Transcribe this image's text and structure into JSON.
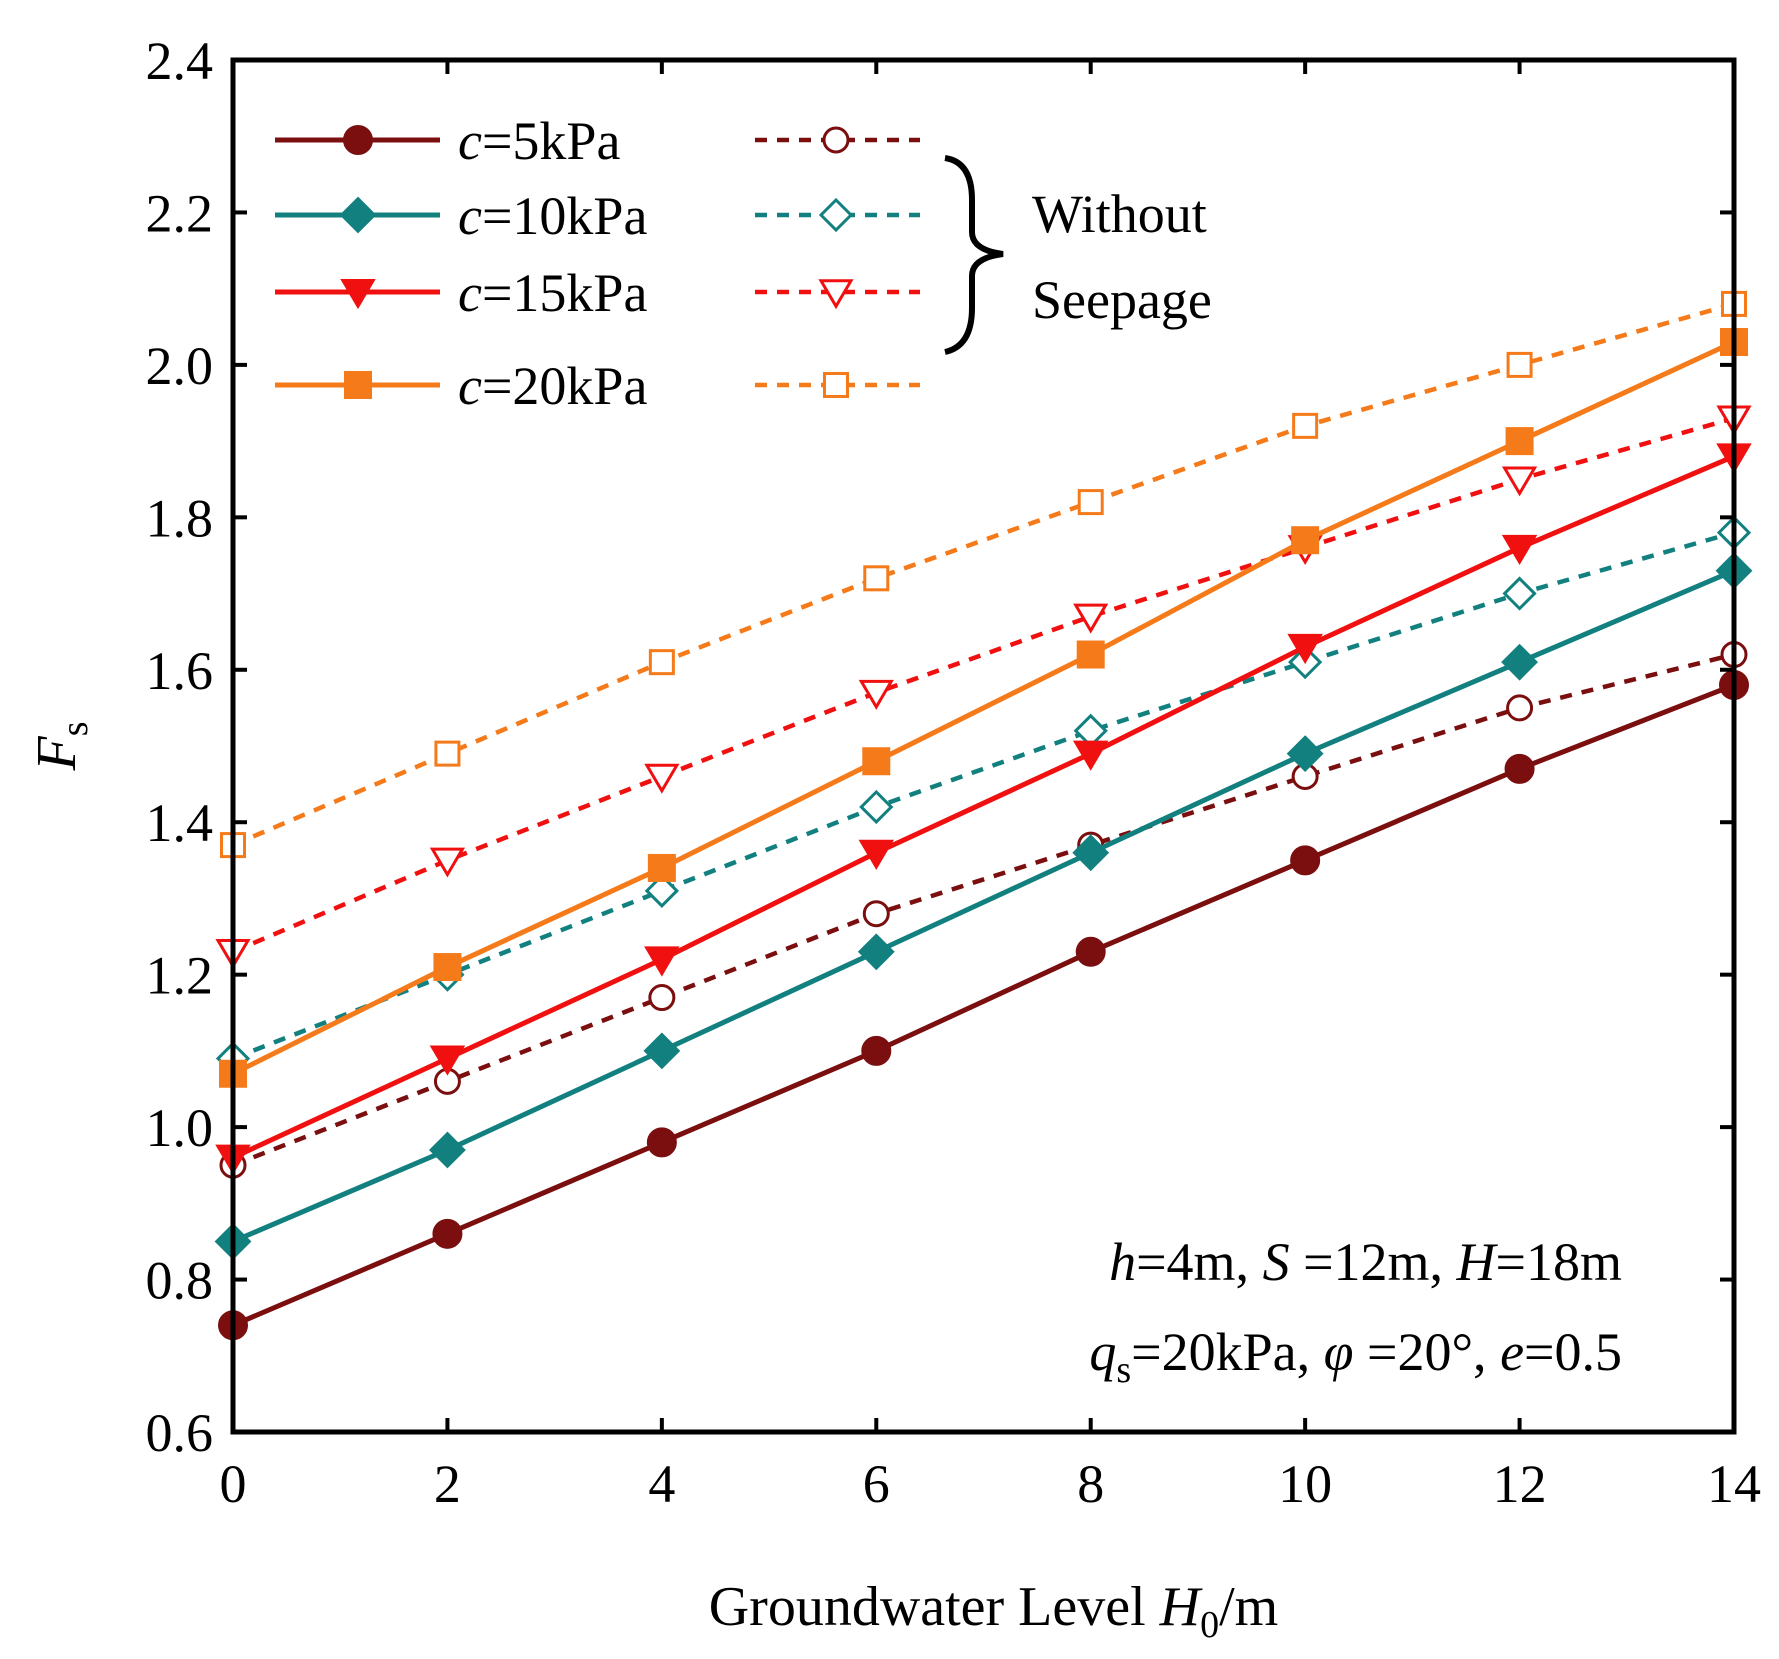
{
  "chart_data": {
    "type": "line",
    "title": "",
    "xlabel": {
      "prefix": "Groundwater Level ",
      "var": "H",
      "sub": "0",
      "suffix": "/m"
    },
    "ylabel": {
      "var": "F",
      "sub": "s"
    },
    "xlim": [
      0,
      14
    ],
    "ylim": [
      0.6,
      2.4
    ],
    "xticks": [
      "0",
      "2",
      "4",
      "6",
      "8",
      "10",
      "12",
      "14"
    ],
    "yticks": [
      "0.6",
      "0.8",
      "1.0",
      "1.2",
      "1.4",
      "1.6",
      "1.8",
      "2.0",
      "2.2",
      "2.4"
    ],
    "grid": false,
    "legend_position": "top-left",
    "x": [
      0,
      2,
      4,
      6,
      8,
      10,
      12,
      14
    ],
    "series": [
      {
        "name": "c=5kPa",
        "var": "c",
        "value": "=5kPa",
        "color": "#7b0e0e",
        "marker": "circle",
        "seepage": true,
        "values": [
          0.74,
          0.86,
          0.98,
          1.1,
          1.23,
          1.35,
          1.47,
          1.58
        ]
      },
      {
        "name": "c=10kPa",
        "var": "c",
        "value": "=10kPa",
        "color": "#138080",
        "marker": "diamond",
        "seepage": true,
        "values": [
          0.85,
          0.97,
          1.1,
          1.23,
          1.36,
          1.49,
          1.61,
          1.73
        ]
      },
      {
        "name": "c=15kPa",
        "var": "c",
        "value": "=15kPa",
        "color": "#f01010",
        "marker": "triangle-down",
        "seepage": true,
        "values": [
          0.96,
          1.09,
          1.22,
          1.36,
          1.49,
          1.63,
          1.76,
          1.88
        ]
      },
      {
        "name": "c=20kPa",
        "var": "c",
        "value": "=20kPa",
        "color": "#f57a1a",
        "marker": "square",
        "seepage": true,
        "values": [
          1.07,
          1.21,
          1.34,
          1.48,
          1.62,
          1.77,
          1.9,
          2.03
        ]
      },
      {
        "name": "c=5kPa (Without Seepage)",
        "color": "#7b0e0e",
        "marker": "circle-open",
        "seepage": false,
        "values": [
          0.95,
          1.06,
          1.17,
          1.28,
          1.37,
          1.46,
          1.55,
          1.62
        ]
      },
      {
        "name": "c=10kPa (Without Seepage)",
        "color": "#138080",
        "marker": "diamond-open",
        "seepage": false,
        "values": [
          1.09,
          1.2,
          1.31,
          1.42,
          1.52,
          1.61,
          1.7,
          1.78
        ]
      },
      {
        "name": "c=15kPa (Without Seepage)",
        "color": "#f01010",
        "marker": "triangle-down-open",
        "seepage": false,
        "values": [
          1.23,
          1.35,
          1.46,
          1.57,
          1.67,
          1.76,
          1.85,
          1.93
        ]
      },
      {
        "name": "c=20kPa (Without Seepage)",
        "color": "#f57a1a",
        "marker": "square-open",
        "seepage": false,
        "values": [
          1.37,
          1.49,
          1.61,
          1.72,
          1.82,
          1.92,
          2.0,
          2.08
        ]
      }
    ],
    "legend_group_label_1": "Without",
    "legend_group_label_2": "Seepage",
    "annotation": {
      "line1": [
        {
          "t": "h",
          "i": true
        },
        {
          "t": "=4m, "
        },
        {
          "t": "S",
          "i": true
        },
        {
          "t": " =12m, "
        },
        {
          "t": "H",
          "i": true
        },
        {
          "t": "=18m"
        }
      ],
      "line2": [
        {
          "t": "q",
          "i": true
        },
        {
          "t": "s",
          "sub": true
        },
        {
          "t": "=20kPa, "
        },
        {
          "t": "φ",
          "i": true
        },
        {
          "t": " =20°, "
        },
        {
          "t": "e",
          "i": true
        },
        {
          "t": "=0.5"
        }
      ]
    }
  }
}
